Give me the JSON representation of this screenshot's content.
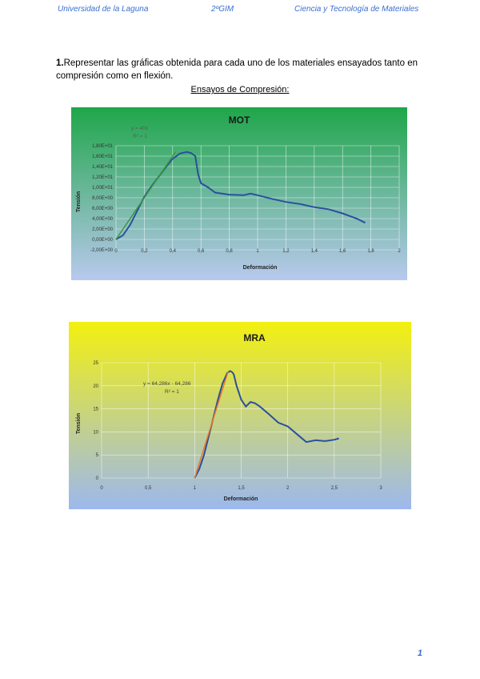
{
  "header": {
    "left": "Universidad de la Laguna",
    "center": "2ºGIM",
    "right": "Ciencia y Tecnología de Materiales"
  },
  "question": {
    "number": "1.",
    "text": "Representar las gráficas obtenida para cada uno de los materiales ensayados tanto en compresión como en flexión."
  },
  "section_title": "Ensayos de Compresión:",
  "page_number": "1",
  "colors": {
    "header_text": "#3b6fd0",
    "mot_bg_top": "#1fa64a",
    "mot_bg_bottom": "#b9c9ee",
    "mra_bg_top": "#f3f00f",
    "mra_bg_bottom": "#9db8ee",
    "series_blue": "#2c4f9e",
    "trend_green": "#3a9a3a",
    "trend_orange": "#ec7a22"
  },
  "chart_data": [
    {
      "type": "line",
      "title": "MOT",
      "xlabel": "Deformación",
      "ylabel": "Tensión",
      "equation": "y = 40x",
      "r_squared": "R² = 1",
      "xlim": [
        0,
        2
      ],
      "ylim": [
        -2,
        18
      ],
      "x_ticks": [
        "0",
        "0,2",
        "0,4",
        "0,6",
        "0,8",
        "1",
        "1,2",
        "1,4",
        "1,6",
        "1,8",
        "2"
      ],
      "y_ticks": [
        "-2,00E+00",
        "0,00E+00",
        "2,00E+00",
        "4,00E+00",
        "6,00E+00",
        "8,00E+00",
        "1,00E+01",
        "1,20E+01",
        "1,40E+01",
        "1,60E+01",
        "1,80E+01"
      ],
      "grid": true,
      "series": [
        {
          "x": [
            0.0,
            0.05,
            0.1,
            0.15,
            0.2,
            0.25,
            0.3,
            0.35,
            0.4,
            0.45,
            0.5,
            0.53,
            0.56,
            0.58,
            0.6,
            0.65,
            0.7,
            0.8,
            0.9,
            0.95,
            1.0,
            1.1,
            1.2,
            1.3,
            1.4,
            1.5,
            1.6,
            1.7,
            1.76
          ],
          "y": [
            0.0,
            0.8,
            2.8,
            5.5,
            8.2,
            10.2,
            12.0,
            13.8,
            15.5,
            16.5,
            16.8,
            16.6,
            16.0,
            12.5,
            10.8,
            10.0,
            9.0,
            8.6,
            8.5,
            8.8,
            8.5,
            7.8,
            7.2,
            6.8,
            6.2,
            5.8,
            5.0,
            4.0,
            3.2
          ]
        }
      ],
      "trendline": {
        "x": [
          0,
          0.42
        ],
        "y": [
          0,
          16.8
        ]
      }
    },
    {
      "type": "line",
      "title": "MRA",
      "xlabel": "Deformación",
      "ylabel": "Tensión",
      "equation": "y = 64,286x - 64,286",
      "r_squared": "R² = 1",
      "xlim": [
        0,
        3
      ],
      "ylim": [
        0,
        25
      ],
      "x_ticks": [
        "0",
        "0,5",
        "1",
        "1,5",
        "2",
        "2,5",
        "3"
      ],
      "y_ticks": [
        "0",
        "5",
        "10",
        "15",
        "20",
        "25"
      ],
      "grid": true,
      "series": [
        {
          "x": [
            1.0,
            1.05,
            1.1,
            1.15,
            1.2,
            1.25,
            1.3,
            1.35,
            1.38,
            1.4,
            1.42,
            1.45,
            1.5,
            1.55,
            1.6,
            1.65,
            1.7,
            1.8,
            1.9,
            2.0,
            2.1,
            2.2,
            2.3,
            2.4,
            2.5,
            2.55
          ],
          "y": [
            0.0,
            2.0,
            5.0,
            9.0,
            13.0,
            17.0,
            20.5,
            22.8,
            23.2,
            23.0,
            22.5,
            20.0,
            17.0,
            15.5,
            16.5,
            16.2,
            15.5,
            13.8,
            12.0,
            11.2,
            9.5,
            7.8,
            8.2,
            8.0,
            8.3,
            8.6
          ]
        }
      ],
      "trendline": {
        "x": [
          1.0,
          1.36
        ],
        "y": [
          0.0,
          23.1
        ]
      }
    }
  ]
}
